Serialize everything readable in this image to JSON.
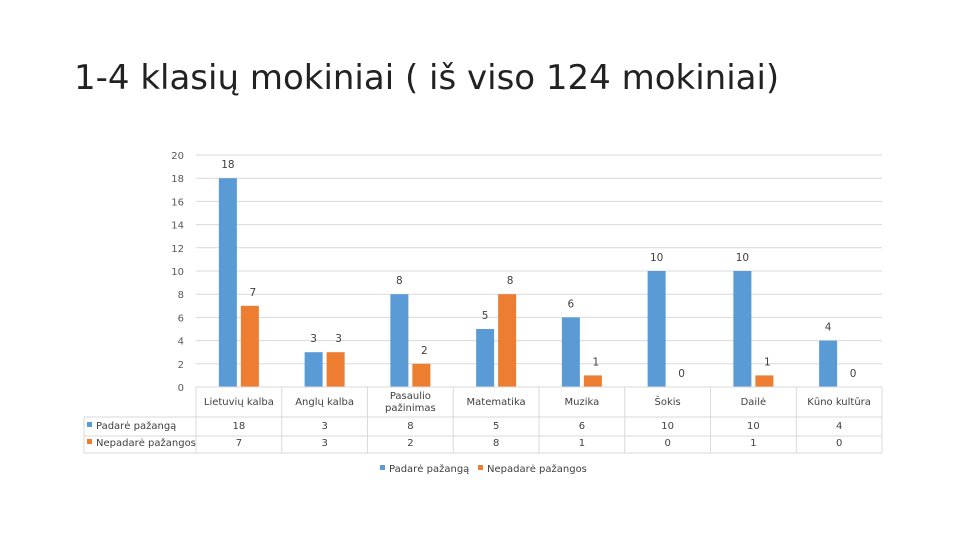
{
  "title": "1-4 klasių mokiniai ( iš viso 124 mokiniai)",
  "chart_data": {
    "type": "bar",
    "categories": [
      "Lietuvių kalba",
      "Anglų kalba",
      "Pasaulio pažinimas",
      "Matematika",
      "Muzika",
      "Šokis",
      "Dailė",
      "Kūno kultūra"
    ],
    "series": [
      {
        "name": "Padarė pažangą",
        "values": [
          18,
          3,
          8,
          5,
          6,
          10,
          10,
          4
        ],
        "color": "#5b9bd5"
      },
      {
        "name": "Nepadarė pažangos",
        "values": [
          7,
          3,
          2,
          8,
          1,
          0,
          1,
          0
        ],
        "color": "#ed7d31"
      }
    ],
    "ylim": [
      0,
      20
    ],
    "yticks": [
      0,
      2,
      4,
      6,
      8,
      10,
      12,
      14,
      16,
      18,
      20
    ],
    "grid": true,
    "data_table": true,
    "legend": "bottom"
  }
}
